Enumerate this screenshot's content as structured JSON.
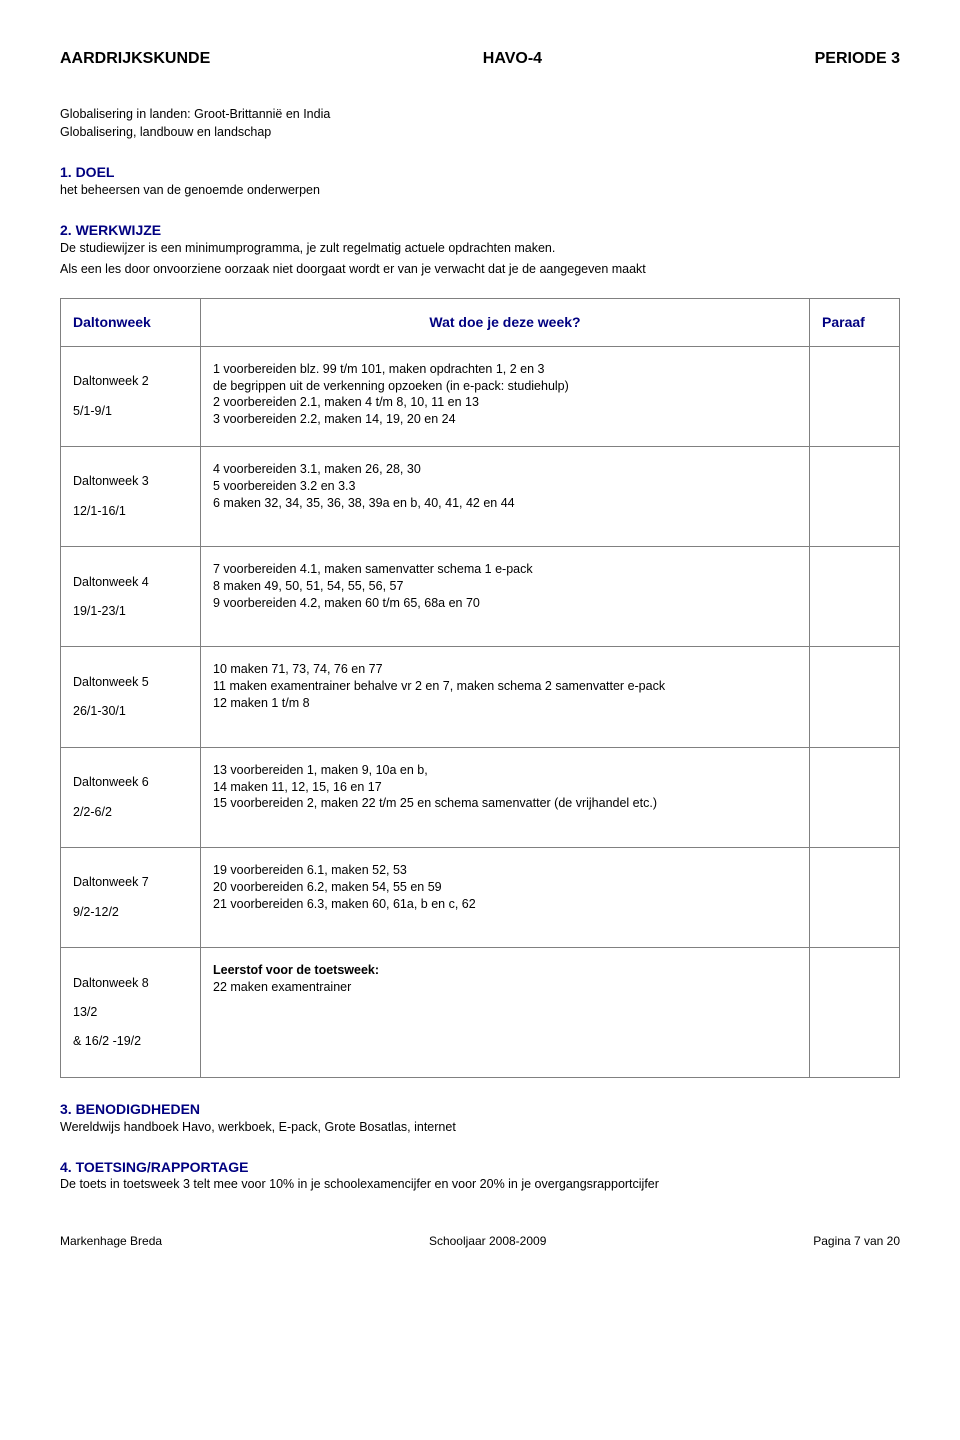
{
  "header": {
    "left": "AARDRIJKSKUNDE",
    "center": "HAVO-4",
    "right": "PERIODE 3"
  },
  "intro": {
    "line1": "Globalisering in landen: Groot-Brittannië en India",
    "line2": "Globalisering, landbouw en landschap"
  },
  "s1": {
    "head": "1.  DOEL",
    "body": "het beheersen van de genoemde onderwerpen"
  },
  "s2": {
    "head": "2.  WERKWIJZE",
    "body1": "De studiewijzer is een minimumprogramma, je zult regelmatig actuele opdrachten maken.",
    "body2": "Als een les door onvoorziene oorzaak niet doorgaat wordt er van je verwacht dat je de aangegeven maakt"
  },
  "table": {
    "col1": "Daltonweek",
    "col2": "Wat doe je deze week?",
    "col3": "Paraaf",
    "rows": [
      {
        "wk_name": "Daltonweek 2",
        "wk_dates": "5/1-9/1",
        "lines": [
          "1 voorbereiden blz. 99 t/m 101, maken opdrachten 1, 2 en 3",
          "de begrippen uit de verkenning opzoeken (in e-pack: studiehulp)",
          "2 voorbereiden 2.1, maken 4 t/m 8, 10, 11 en 13",
          "3 voorbereiden 2.2, maken 14, 19, 20 en 24"
        ]
      },
      {
        "wk_name": "Daltonweek 3",
        "wk_dates": "12/1-16/1",
        "lines": [
          "4 voorbereiden 3.1, maken 26, 28, 30",
          "5 voorbereiden 3.2 en 3.3",
          "6 maken 32, 34, 35, 36, 38, 39a en b, 40, 41, 42 en 44"
        ]
      },
      {
        "wk_name": "Daltonweek 4",
        "wk_dates": "19/1-23/1",
        "lines": [
          "7 voorbereiden 4.1, maken samenvatter schema 1 e-pack",
          "8 maken 49, 50, 51, 54, 55, 56, 57",
          "9 voorbereiden 4.2, maken 60 t/m 65, 68a en 70"
        ]
      },
      {
        "wk_name": "Daltonweek 5",
        "wk_dates": "26/1-30/1",
        "lines": [
          "10 maken 71, 73, 74, 76 en 77",
          "11 maken examentrainer behalve vr 2 en 7, maken schema 2 samenvatter e-pack",
          "12 maken 1 t/m 8"
        ]
      },
      {
        "wk_name": "Daltonweek 6",
        "wk_dates": "2/2-6/2",
        "lines": [
          "13 voorbereiden 1, maken 9, 10a en b,",
          "14 maken 11, 12, 15, 16 en 17",
          "15 voorbereiden 2, maken 22 t/m 25 en schema samenvatter (de vrijhandel etc.)"
        ]
      },
      {
        "wk_name": "Daltonweek 7",
        "wk_dates": "9/2-12/2",
        "lines": [
          "19 voorbereiden 6.1, maken 52, 53",
          "20 voorbereiden 6.2, maken 54, 55 en 59",
          "21 voorbereiden 6.3, maken 60, 61a, b en c, 62"
        ]
      },
      {
        "wk_name": "Daltonweek 8",
        "wk_dates": "13/2",
        "wk_dates2": "& 16/2 -19/2",
        "bold_line": "Leerstof voor de toetsweek:",
        "lines": [
          "22 maken examentrainer"
        ]
      }
    ]
  },
  "s3": {
    "head": "3.  BENODIGDHEDEN",
    "body": "Wereldwijs handboek Havo, werkboek, E-pack, Grote Bosatlas, internet"
  },
  "s4": {
    "head": "4.  TOETSING/RAPPORTAGE",
    "body": "De toets in toetsweek 3 telt mee voor 10% in je schoolexamencijfer en voor 20% in je overgangsrapportcijfer"
  },
  "footer": {
    "left": "Markenhage Breda",
    "center": "Schooljaar 2008-2009",
    "right": "Pagina 7 van 20"
  }
}
